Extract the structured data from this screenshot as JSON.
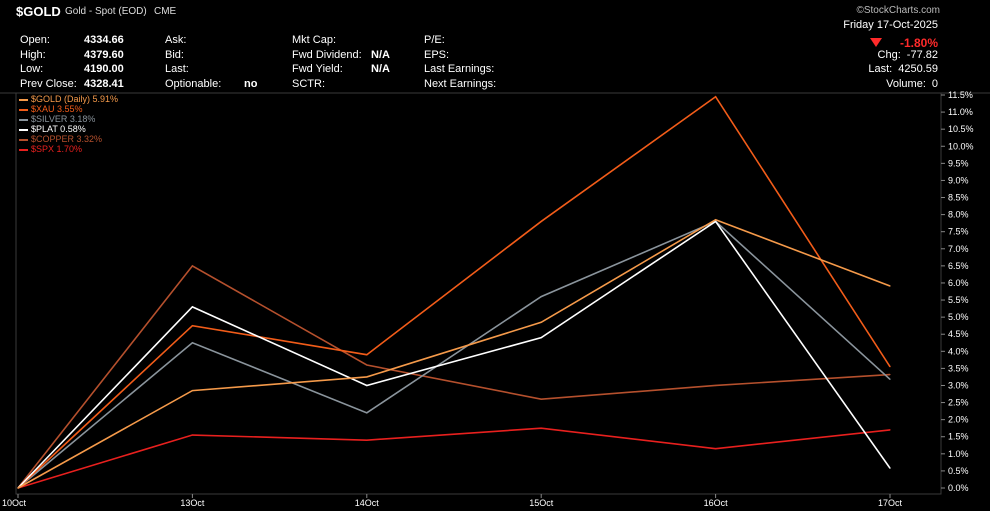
{
  "header": {
    "symbol": "$GOLD",
    "subtitle": "Gold - Spot (EOD)",
    "exchange": "CME",
    "brand": "©StockCharts.com",
    "date": "Friday  17-Oct-2025",
    "change_pct": "-1.80%",
    "col1": [
      {
        "label": "Open:",
        "value": "4334.66"
      },
      {
        "label": "High:",
        "value": "4379.60"
      },
      {
        "label": "Low:",
        "value": "4190.00"
      },
      {
        "label": "Prev Close:",
        "value": "4328.41"
      }
    ],
    "col2": [
      {
        "label": "Ask:",
        "value": ""
      },
      {
        "label": "Bid:",
        "value": ""
      },
      {
        "label": "Last:",
        "value": ""
      },
      {
        "label": "Optionable:",
        "value": "no"
      }
    ],
    "col3": [
      {
        "label": "Mkt Cap:",
        "value": ""
      },
      {
        "label": "Fwd Dividend:",
        "value": "N/A"
      },
      {
        "label": "Fwd Yield:",
        "value": "N/A"
      },
      {
        "label": "SCTR:",
        "value": ""
      }
    ],
    "col4": [
      {
        "label": "P/E:",
        "value": ""
      },
      {
        "label": "EPS:",
        "value": ""
      },
      {
        "label": "Last Earnings:",
        "value": ""
      },
      {
        "label": "Next Earnings:",
        "value": ""
      }
    ],
    "col5": [
      {
        "label": "Chg:",
        "value": "-77.82"
      },
      {
        "label": "Last:",
        "value": "4250.59"
      },
      {
        "label": "Volume:",
        "value": "0"
      }
    ]
  },
  "chart_data": {
    "type": "line",
    "categories": [
      "10Oct",
      "13Oct",
      "14Oct",
      "15Oct",
      "16Oct",
      "17Oct"
    ],
    "ylim": [
      0,
      11.5
    ],
    "yticks": [
      "0.0%",
      "0.5%",
      "1.0%",
      "1.5%",
      "2.0%",
      "2.5%",
      "3.0%",
      "3.5%",
      "4.0%",
      "4.5%",
      "5.0%",
      "5.5%",
      "6.0%",
      "6.5%",
      "7.0%",
      "7.5%",
      "8.0%",
      "8.5%",
      "9.0%",
      "9.5%",
      "10.0%",
      "10.5%",
      "11.0%",
      "11.5%"
    ],
    "series": [
      {
        "name": "$GOLD (Daily) 5.91%",
        "color": "#f59a4a",
        "values": [
          0,
          2.85,
          3.25,
          4.85,
          7.85,
          5.91
        ]
      },
      {
        "name": "$XAU 3.55%",
        "color": "#f25c19",
        "values": [
          0,
          4.75,
          3.9,
          7.8,
          11.45,
          3.55
        ]
      },
      {
        "name": "$SILVER 3.18%",
        "color": "#8a949c",
        "values": [
          0,
          4.25,
          2.2,
          5.6,
          7.8,
          3.18
        ]
      },
      {
        "name": "$PLAT 0.58%",
        "color": "#ffffff",
        "values": [
          0,
          5.3,
          3.0,
          4.4,
          7.8,
          0.58
        ]
      },
      {
        "name": "$COPPER 3.32%",
        "color": "#b5502d",
        "values": [
          0,
          6.5,
          3.6,
          2.6,
          3.0,
          3.32
        ]
      },
      {
        "name": "$SPX 1.70%",
        "color": "#e8201e",
        "values": [
          0,
          1.55,
          1.4,
          1.75,
          1.15,
          1.7
        ]
      }
    ]
  }
}
